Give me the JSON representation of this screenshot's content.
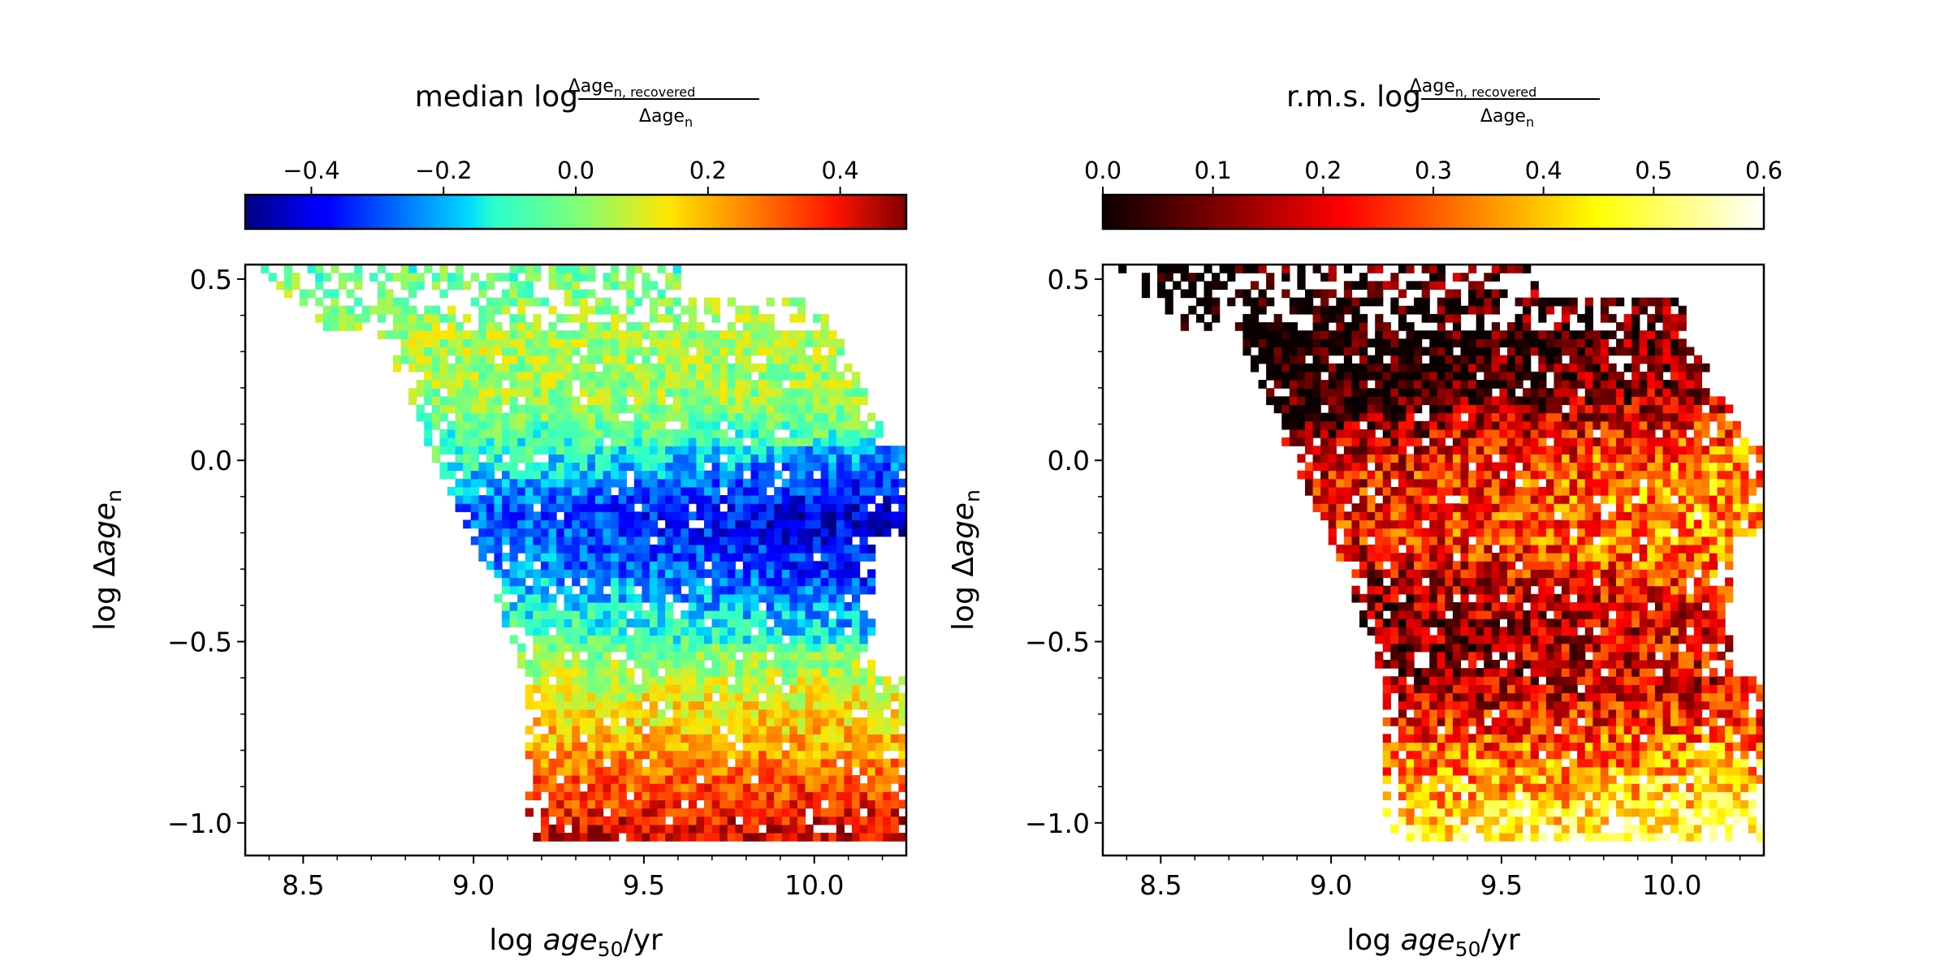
{
  "chart_data": [
    {
      "type": "heatmap",
      "colormap": "jet",
      "colorbar": {
        "title_prefix": "median log",
        "title_fraction": {
          "numerator": "Δage",
          "numerator_sub": "n, recovered",
          "denominator": "Δage",
          "denominator_sub": "n"
        },
        "range": [
          -0.5,
          0.5
        ],
        "ticks": [
          -0.4,
          -0.2,
          0.0,
          0.2,
          0.4
        ],
        "tick_labels": [
          "−0.4",
          "−0.2",
          "0.0",
          "0.2",
          "0.4"
        ]
      },
      "xlabel_parts": {
        "prefix": "log ",
        "var": "age",
        "sub": "50",
        "suffix": "/yr"
      },
      "ylabel_parts": {
        "prefix": "log Δ",
        "var": "age",
        "sub": "n"
      },
      "xlim": [
        8.33,
        10.27
      ],
      "ylim": [
        -1.09,
        0.54
      ],
      "xticks": [
        8.5,
        9.0,
        9.5,
        10.0
      ],
      "xtick_labels": [
        "8.5",
        "9.0",
        "9.5",
        "10.0"
      ],
      "yticks": [
        0.5,
        0.0,
        -0.5,
        -1.0
      ],
      "ytick_labels": [
        "0.5",
        "0.0",
        "−0.5",
        "−1.0"
      ],
      "bin_x_edges": [
        8.33,
        10.27
      ],
      "bin_y_edges": [
        -1.05,
        0.54
      ],
      "n_bins_x": 85,
      "n_bins_y": 70,
      "value_profile": [
        {
          "y": -1.05,
          "value": 0.44
        },
        {
          "y": -0.9,
          "value": 0.32
        },
        {
          "y": -0.75,
          "value": 0.18
        },
        {
          "y": -0.6,
          "value": 0.07
        },
        {
          "y": -0.45,
          "value": -0.1
        },
        {
          "y": -0.3,
          "value": -0.25
        },
        {
          "y": -0.15,
          "value": -0.33
        },
        {
          "y": 0.0,
          "value": -0.15
        },
        {
          "y": 0.15,
          "value": 0.02
        },
        {
          "y": 0.35,
          "value": 0.05
        },
        {
          "y": 0.54,
          "value": -0.05
        }
      ]
    },
    {
      "type": "heatmap",
      "colormap": "hot",
      "colorbar": {
        "title_prefix": "r.m.s. log",
        "title_fraction": {
          "numerator": "Δage",
          "numerator_sub": "n, recovered",
          "denominator": "Δage",
          "denominator_sub": "n"
        },
        "range": [
          0.0,
          0.6
        ],
        "ticks": [
          0.0,
          0.1,
          0.2,
          0.3,
          0.4,
          0.5,
          0.6
        ],
        "tick_labels": [
          "0.0",
          "0.1",
          "0.2",
          "0.3",
          "0.4",
          "0.5",
          "0.6"
        ]
      },
      "xlabel_parts": {
        "prefix": "log ",
        "var": "age",
        "sub": "50",
        "suffix": "/yr"
      },
      "ylabel_parts": {
        "prefix": "log Δ",
        "var": "age",
        "sub": "n"
      },
      "xlim": [
        8.33,
        10.27
      ],
      "ylim": [
        -1.09,
        0.54
      ],
      "xticks": [
        8.5,
        9.0,
        9.5,
        10.0
      ],
      "xtick_labels": [
        "8.5",
        "9.0",
        "9.5",
        "10.0"
      ],
      "yticks": [
        0.5,
        0.0,
        -0.5,
        -1.0
      ],
      "ytick_labels": [
        "0.5",
        "0.0",
        "−0.5",
        "−1.0"
      ],
      "bin_x_edges": [
        8.33,
        10.27
      ],
      "bin_y_edges": [
        -1.05,
        0.54
      ],
      "n_bins_x": 85,
      "n_bins_y": 70,
      "value_profile": [
        {
          "y": -1.05,
          "value": 0.5
        },
        {
          "y": -0.85,
          "value": 0.35
        },
        {
          "y": -0.6,
          "value": 0.15
        },
        {
          "y": -0.4,
          "value": 0.17
        },
        {
          "y": -0.2,
          "value": 0.3
        },
        {
          "y": 0.0,
          "value": 0.27
        },
        {
          "y": 0.2,
          "value": 0.07
        },
        {
          "y": 0.35,
          "value": 0.05
        },
        {
          "y": 0.54,
          "value": 0.1
        }
      ]
    }
  ],
  "colors": {
    "background": "#ffffff",
    "axes": "#000000"
  }
}
